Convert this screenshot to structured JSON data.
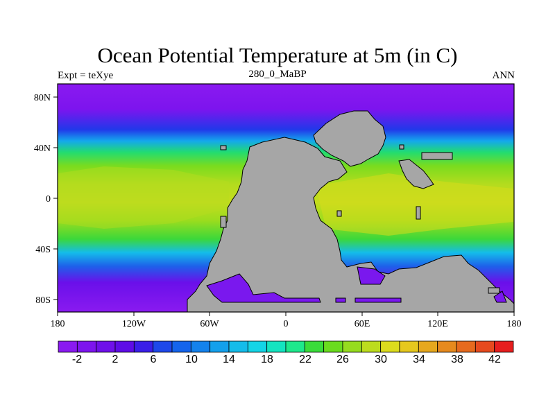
{
  "header": {
    "title": "Ocean Potential Temperature at 5m (in C)",
    "left_label": "Expt = teXye",
    "center_label": "280_0_MaBP",
    "right_label": "ANN"
  },
  "axes": {
    "x_ticks": [
      "180",
      "120W",
      "60W",
      "0",
      "60E",
      "120E",
      "180"
    ],
    "y_ticks": [
      "80N",
      "40N",
      "0",
      "40S",
      "80S"
    ]
  },
  "colorbar": {
    "labels": [
      "-2",
      "2",
      "6",
      "10",
      "14",
      "18",
      "22",
      "26",
      "30",
      "34",
      "38",
      "42"
    ],
    "colors": [
      "#8a1af0",
      "#7d14ee",
      "#6f10ea",
      "#5e0ce6",
      "#3a1ee8",
      "#1e48ea",
      "#1464ec",
      "#1482ec",
      "#14a0ec",
      "#14bcea",
      "#14d4e6",
      "#14e4c0",
      "#1ee88c",
      "#3adc3a",
      "#6adc1e",
      "#96dc1e",
      "#bcdc1e",
      "#dcdc1e",
      "#e6c81e",
      "#e6a81e",
      "#e68a1e",
      "#e66a1e",
      "#e64a1e",
      "#e61e1e"
    ]
  },
  "colors": {
    "land": "#a6a6a6",
    "cold": "#7a1aee",
    "warm": "#cde01c"
  }
}
